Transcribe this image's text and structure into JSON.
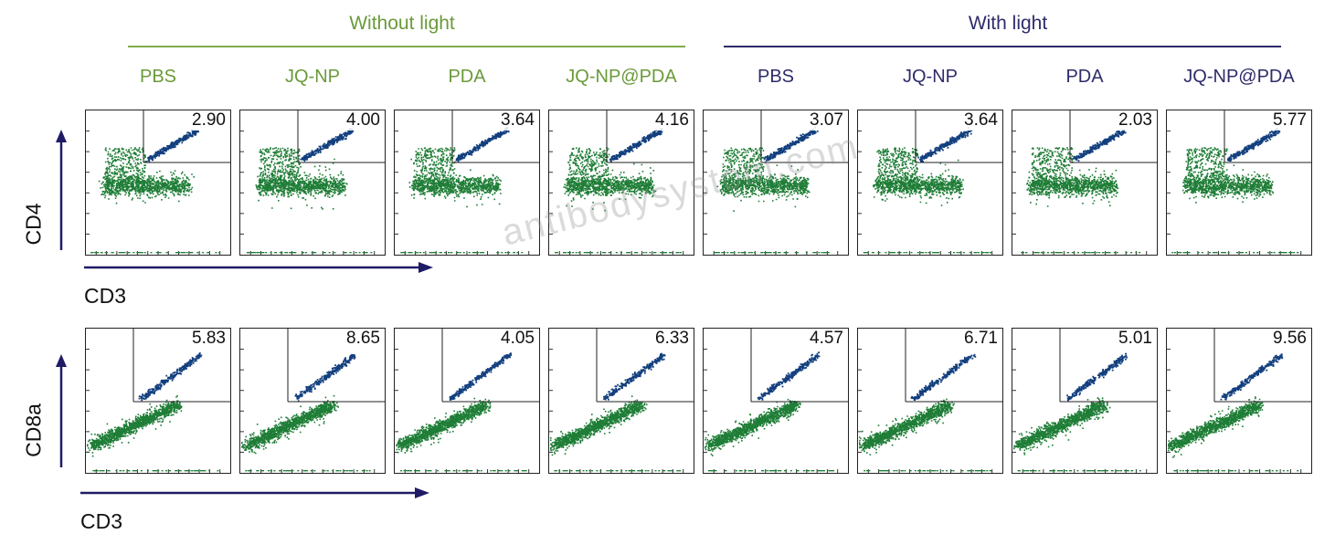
{
  "groups": {
    "without_light": {
      "label": "Without light",
      "color": "#6a9a3a"
    },
    "with_light": {
      "label": "With light",
      "color": "#2e2c6a"
    }
  },
  "colors": {
    "negative_population": "#1e7d36",
    "positive_population": "#123f7e",
    "axis_arrow": "#1f1b66"
  },
  "axes": {
    "row1_y": "CD4",
    "row1_x": "CD3",
    "row2_y": "CD8a",
    "row2_x": "CD3"
  },
  "watermark": "antibodysystom.com",
  "chart_data": [
    {
      "type": "scatter",
      "row": "CD4 vs CD3",
      "xlabel": "CD3",
      "ylabel": "CD4",
      "grid": false,
      "panels": [
        {
          "group": "Without light",
          "label": "PBS",
          "value": "2.90"
        },
        {
          "group": "Without light",
          "label": "JQ-NP",
          "value": "4.00"
        },
        {
          "group": "Without light",
          "label": "PDA",
          "value": "3.64"
        },
        {
          "group": "Without light",
          "label": "JQ-NP@PDA",
          "value": "4.16"
        },
        {
          "group": "With light",
          "label": "PBS",
          "value": "3.07"
        },
        {
          "group": "With light",
          "label": "JQ-NP",
          "value": "3.64"
        },
        {
          "group": "With light",
          "label": "PDA",
          "value": "2.03"
        },
        {
          "group": "With light",
          "label": "JQ-NP@PDA",
          "value": "5.77"
        }
      ]
    },
    {
      "type": "scatter",
      "row": "CD8a vs CD3",
      "xlabel": "CD3",
      "ylabel": "CD8a",
      "grid": false,
      "panels": [
        {
          "group": "Without light",
          "label": "PBS",
          "value": "5.83"
        },
        {
          "group": "Without light",
          "label": "JQ-NP",
          "value": "8.65"
        },
        {
          "group": "Without light",
          "label": "PDA",
          "value": "4.05"
        },
        {
          "group": "Without light",
          "label": "JQ-NP@PDA",
          "value": "6.33"
        },
        {
          "group": "With light",
          "label": "PBS",
          "value": "4.57"
        },
        {
          "group": "With light",
          "label": "JQ-NP",
          "value": "6.71"
        },
        {
          "group": "With light",
          "label": "PDA",
          "value": "5.01"
        },
        {
          "group": "With light",
          "label": "JQ-NP@PDA",
          "value": "9.56"
        }
      ]
    }
  ]
}
